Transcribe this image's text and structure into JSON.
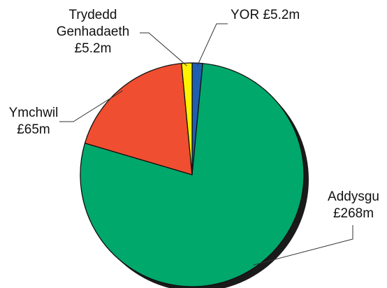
{
  "chart_data": {
    "type": "pie",
    "title": "",
    "unit": "£m",
    "slices": [
      {
        "id": "yor",
        "label_line1": "YOR £5.2m",
        "label_line2": "",
        "label_line3": "",
        "value": 5.2,
        "color": "#1f5fb0"
      },
      {
        "id": "addysgu",
        "label_line1": "Addysgu",
        "label_line2": "£268m",
        "label_line3": "",
        "value": 268,
        "color": "#00a86b"
      },
      {
        "id": "ymchwil",
        "label_line1": "Ymchwil",
        "label_line2": "£65m",
        "label_line3": "",
        "value": 65,
        "color": "#f04e30"
      },
      {
        "id": "trydedd",
        "label_line1": "Trydedd",
        "label_line2": "Genhadaeth",
        "label_line3": "£5.2m",
        "value": 5.2,
        "color": "#fff200"
      }
    ],
    "start": "12 o'clock",
    "direction": "clockwise",
    "legend": "none",
    "labels": "outside with leader lines",
    "shadow": true
  }
}
